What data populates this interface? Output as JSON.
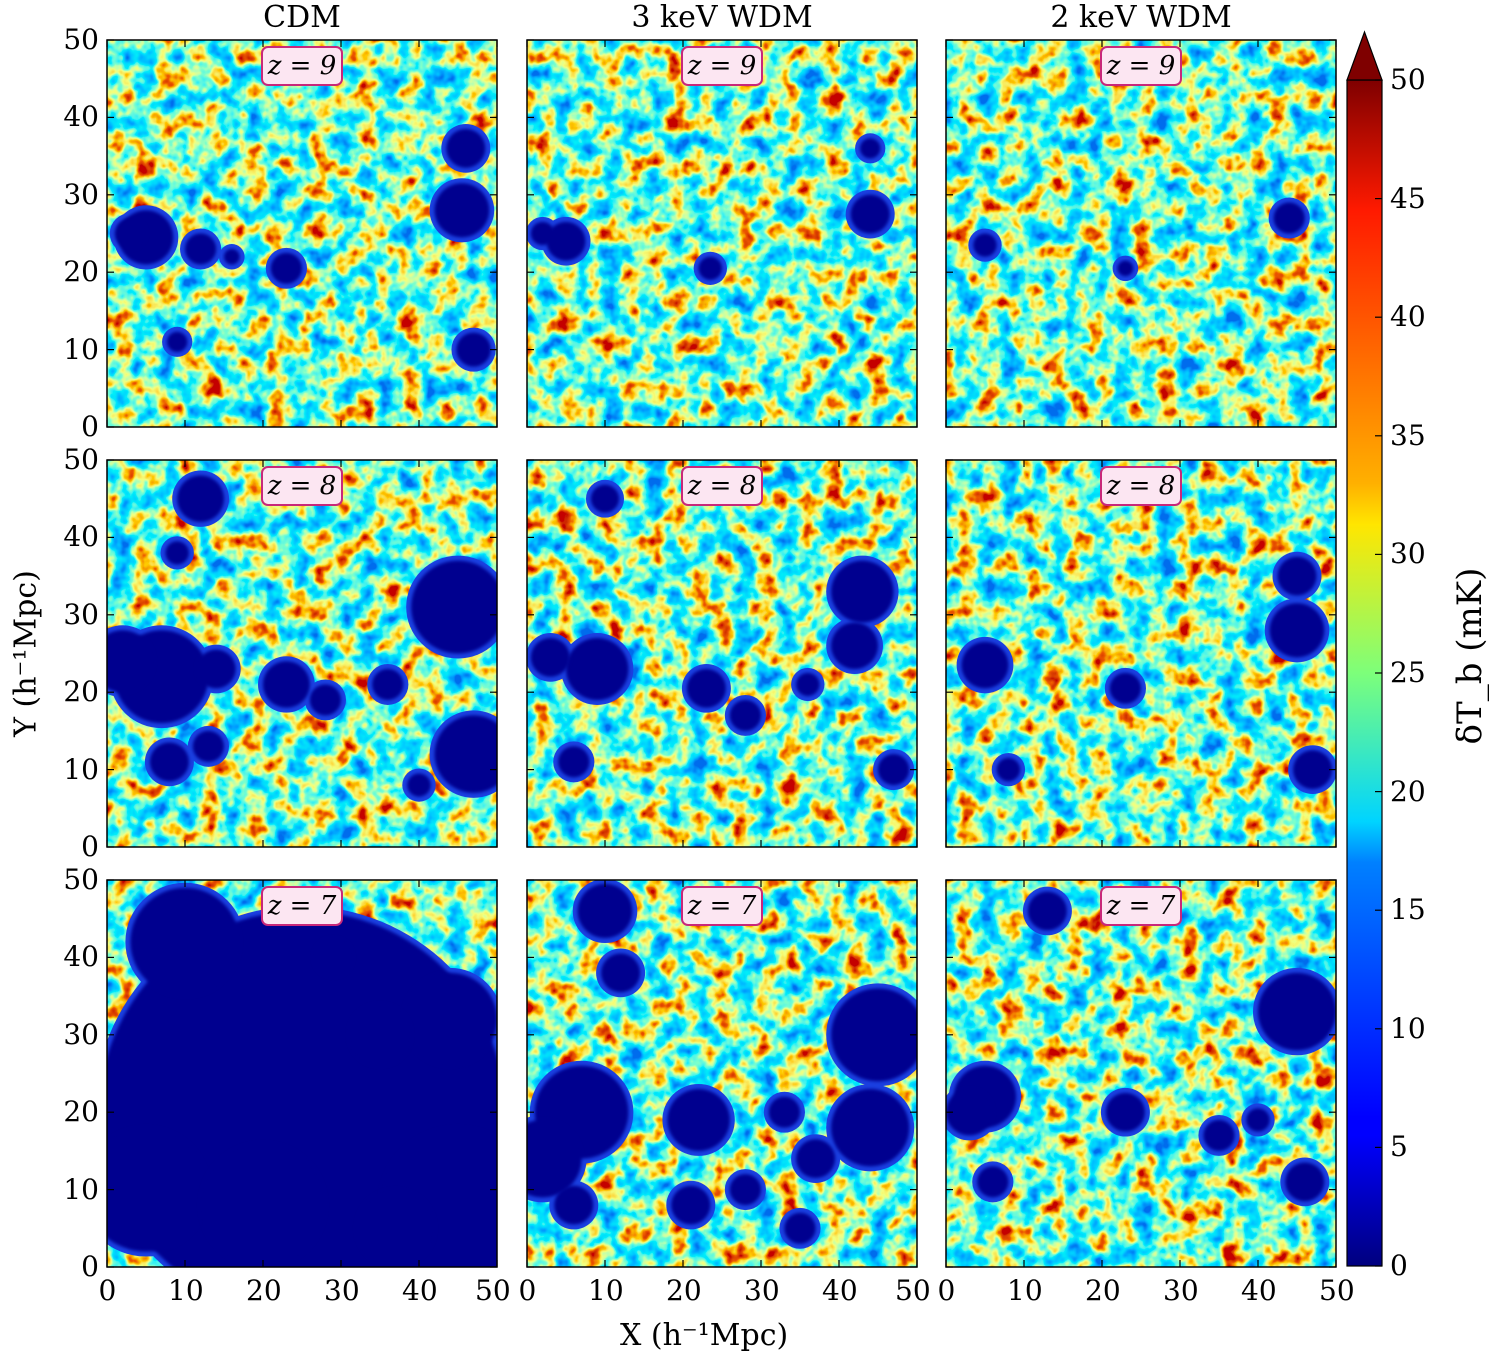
{
  "chart_data": {
    "type": "heatmap",
    "columns": [
      "CDM",
      "3 keV WDM",
      "2 keV WDM"
    ],
    "rows": [
      {
        "redshift_label": "z = 9",
        "z": 9
      },
      {
        "redshift_label": "z = 8",
        "z": 8
      },
      {
        "redshift_label": "z = 7",
        "z": 7
      }
    ],
    "xlabel": "X (h⁻¹Mpc)",
    "ylabel": "Y (h⁻¹Mpc)",
    "x_range": [
      0,
      50
    ],
    "y_range": [
      0,
      50
    ],
    "x_ticks": [
      "0",
      "10",
      "20",
      "30",
      "40",
      "50"
    ],
    "y_ticks": [
      "0",
      "10",
      "20",
      "30",
      "40",
      "50"
    ],
    "colorbar": {
      "label": "δT_b (mK)",
      "range": [
        0,
        50
      ],
      "ticks": [
        "0",
        "5",
        "10",
        "15",
        "20",
        "25",
        "30",
        "35",
        "40",
        "45",
        "50"
      ],
      "colormap": "jet",
      "extend": "max"
    },
    "ionized_regions": {
      "description_note": "",
      "panels": [
        [
          [
            [
              46,
              36,
              2.5
            ],
            [
              45.5,
              28,
              3.5
            ],
            [
              23,
              20.5,
              2
            ],
            [
              9,
              11,
              1.3
            ],
            [
              47,
              10,
              2.2
            ],
            [
              5,
              24.5,
              3.5
            ],
            [
              12,
              23,
              2
            ],
            [
              3,
              25,
              2
            ],
            [
              16,
              22,
              1
            ]
          ],
          [
            [
              44,
              36,
              1.3
            ],
            [
              44,
              27.5,
              2.5
            ],
            [
              23.5,
              20.5,
              1.5
            ],
            [
              5,
              24,
              2.5
            ],
            [
              2,
              25,
              1.5
            ]
          ],
          [
            [
              44,
              27,
              2
            ],
            [
              5,
              23.5,
              1.5
            ],
            [
              23,
              20.5,
              1
            ]
          ]
        ],
        [
          [
            [
              12,
              45,
              3
            ],
            [
              9,
              38,
              1.5
            ],
            [
              45,
              31,
              6
            ],
            [
              7,
              22,
              6
            ],
            [
              2,
              24,
              4
            ],
            [
              14,
              23,
              2.5
            ],
            [
              23,
              21,
              3
            ],
            [
              28,
              19,
              2
            ],
            [
              8,
              11,
              2.5
            ],
            [
              47,
              12,
              5
            ],
            [
              40,
              8,
              1.5
            ],
            [
              13,
              13,
              2
            ],
            [
              36,
              21,
              2
            ]
          ],
          [
            [
              10,
              45,
              1.8
            ],
            [
              43,
              33,
              4
            ],
            [
              42,
              26,
              3
            ],
            [
              9,
              23,
              4
            ],
            [
              3,
              24.5,
              2.5
            ],
            [
              23,
              20.5,
              2.5
            ],
            [
              28,
              17,
              2
            ],
            [
              6,
              11,
              2
            ],
            [
              47,
              10,
              2
            ],
            [
              36,
              21,
              1.5
            ]
          ],
          [
            [
              45,
              35,
              2.5
            ],
            [
              45,
              28,
              3.5
            ],
            [
              5,
              23.5,
              3
            ],
            [
              23,
              20.5,
              2
            ],
            [
              8,
              10,
              1.5
            ],
            [
              47,
              10,
              2.5
            ]
          ]
        ],
        [
          [
            [
              25,
              20,
              26
            ],
            [
              10,
              42,
              7
            ],
            [
              44,
              32,
              6
            ],
            [
              45,
              8,
              10
            ],
            [
              5,
              10,
              8
            ],
            [
              20,
              8,
              8
            ],
            [
              35,
              30,
              4
            ],
            [
              29,
              40,
              2.5
            ],
            [
              37,
              5,
              5
            ]
          ],
          [
            [
              45,
              30,
              6
            ],
            [
              44,
              18,
              5
            ],
            [
              7,
              20,
              6
            ],
            [
              2,
              14,
              5
            ],
            [
              22,
              19,
              4
            ],
            [
              10,
              46,
              3.5
            ],
            [
              12,
              38,
              2.5
            ],
            [
              21,
              8,
              2.5
            ],
            [
              6,
              8,
              2.5
            ],
            [
              37,
              14,
              2.5
            ],
            [
              28,
              10,
              2
            ],
            [
              35,
              5,
              2
            ],
            [
              33,
              20,
              2
            ]
          ],
          [
            [
              45,
              33,
              5
            ],
            [
              5,
              22,
              4
            ],
            [
              3,
              20,
              3
            ],
            [
              23,
              20,
              2.5
            ],
            [
              13,
              46,
              2.5
            ],
            [
              6,
              11,
              2
            ],
            [
              46,
              11,
              2.5
            ],
            [
              35,
              17,
              2
            ],
            [
              40,
              19,
              1.5
            ]
          ]
        ]
      ]
    }
  }
}
